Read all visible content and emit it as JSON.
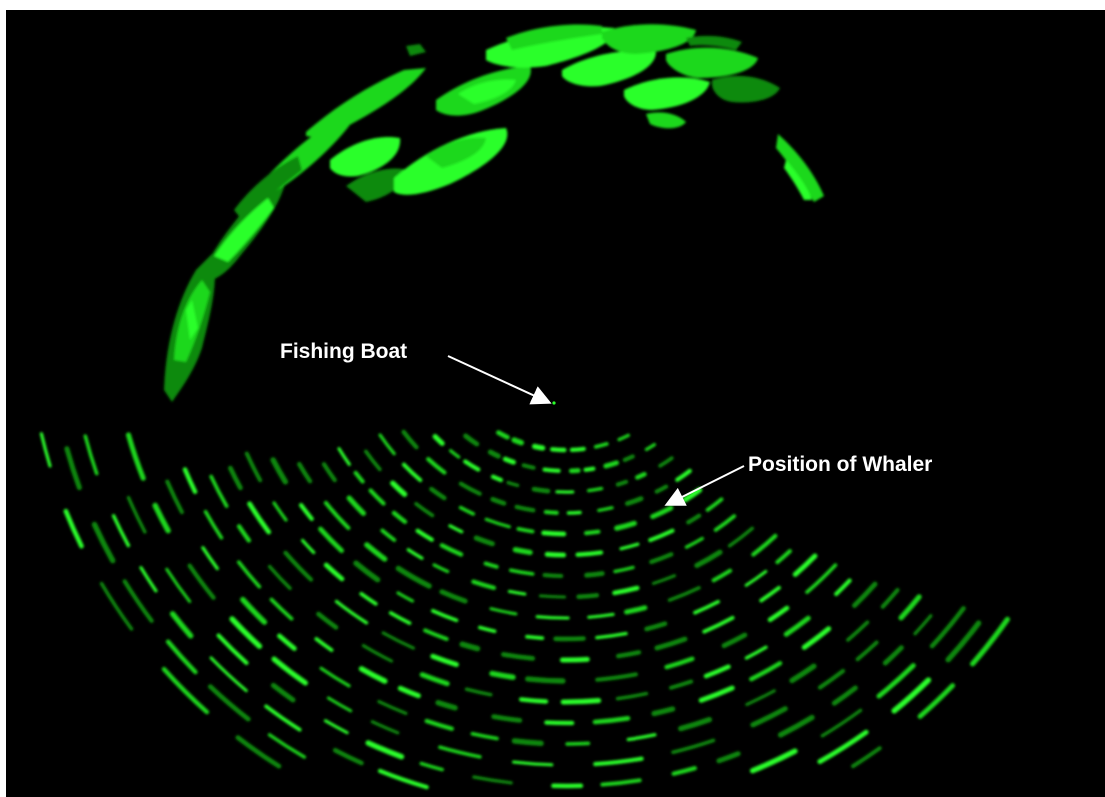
{
  "annotations": {
    "fishing_boat": "Fishing Boat",
    "whaler": "Position of Whaler"
  },
  "colors": {
    "background": "#000000",
    "echo_bright": "#2bff2b",
    "echo_mid": "#1ed81e",
    "echo_dark": "#0f8a0f",
    "label_text": "#ffffff"
  }
}
